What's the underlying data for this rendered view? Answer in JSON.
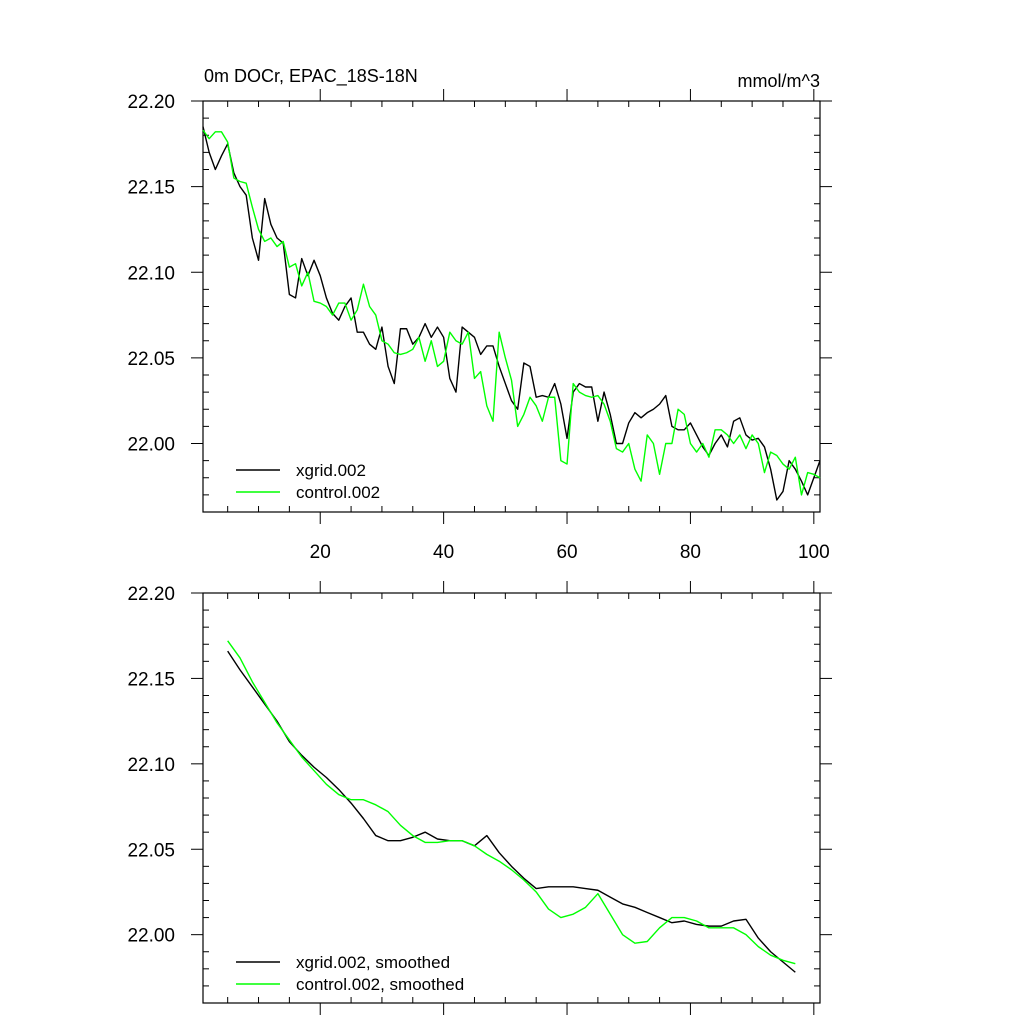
{
  "title_left": "0m DOCr, EPAC_18S-18N",
  "title_right": "mmol/m^3",
  "chart_data": [
    {
      "type": "line",
      "title": "0m DOCr, EPAC_18S-18N",
      "units": "mmol/m^3",
      "xlim": [
        1,
        101
      ],
      "ylim": [
        21.96,
        22.2
      ],
      "x_ticks": [
        20,
        40,
        60,
        80,
        100
      ],
      "x_tick_labels": [
        "20",
        "40",
        "60",
        "80",
        "100"
      ],
      "y_ticks": [
        22.0,
        22.05,
        22.1,
        22.15,
        22.2
      ],
      "y_tick_labels": [
        "22.00",
        "22.05",
        "22.10",
        "22.15",
        "22.20"
      ],
      "legend": [
        "xgrid.002",
        "control.002"
      ],
      "legend_position": "bottom-left",
      "x": [
        1,
        2,
        3,
        4,
        5,
        6,
        7,
        8,
        9,
        10,
        11,
        12,
        13,
        14,
        15,
        16,
        17,
        18,
        19,
        20,
        21,
        22,
        23,
        24,
        25,
        26,
        27,
        28,
        29,
        30,
        31,
        32,
        33,
        34,
        35,
        36,
        37,
        38,
        39,
        40,
        41,
        42,
        43,
        44,
        45,
        46,
        47,
        48,
        49,
        50,
        51,
        52,
        53,
        54,
        55,
        56,
        57,
        58,
        59,
        60,
        61,
        62,
        63,
        64,
        65,
        66,
        67,
        68,
        69,
        70,
        71,
        72,
        73,
        74,
        75,
        76,
        77,
        78,
        79,
        80,
        81,
        82,
        83,
        84,
        85,
        86,
        87,
        88,
        89,
        90,
        91,
        92,
        93,
        94,
        95,
        96,
        97,
        98,
        99,
        100,
        101
      ],
      "series": [
        {
          "name": "xgrid.002",
          "color": "#000000",
          "values": [
            22.185,
            22.17,
            22.16,
            22.168,
            22.175,
            22.158,
            22.15,
            22.145,
            22.12,
            22.107,
            22.143,
            22.128,
            22.12,
            22.117,
            22.087,
            22.085,
            22.108,
            22.098,
            22.107,
            22.098,
            22.085,
            22.076,
            22.072,
            22.08,
            22.085,
            22.065,
            22.065,
            22.058,
            22.055,
            22.068,
            22.045,
            22.035,
            22.067,
            22.067,
            22.058,
            22.062,
            22.07,
            22.062,
            22.068,
            22.062,
            22.038,
            22.03,
            22.068,
            22.065,
            22.062,
            22.052,
            22.057,
            22.057,
            22.045,
            22.035,
            22.025,
            22.02,
            22.047,
            22.045,
            22.027,
            22.028,
            22.027,
            22.035,
            22.023,
            22.003,
            22.03,
            22.035,
            22.033,
            22.033,
            22.013,
            22.03,
            22.017,
            22.0,
            22.0,
            22.012,
            22.018,
            22.015,
            22.018,
            22.02,
            22.023,
            22.028,
            22.01,
            22.008,
            22.008,
            22.012,
            22.005,
            21.998,
            21.993,
            22.0,
            22.005,
            21.998,
            22.013,
            22.015,
            22.005,
            22.002,
            22.003,
            21.998,
            21.985,
            21.967,
            21.972,
            21.99,
            21.985,
            21.978,
            21.97,
            21.98,
            21.99
          ]
        },
        {
          "name": "control.002",
          "color": "#00ff00",
          "values": [
            22.183,
            22.178,
            22.182,
            22.182,
            22.176,
            22.155,
            22.153,
            22.152,
            22.138,
            22.125,
            22.118,
            22.12,
            22.115,
            22.118,
            22.103,
            22.105,
            22.092,
            22.1,
            22.083,
            22.082,
            22.08,
            22.075,
            22.082,
            22.082,
            22.072,
            22.078,
            22.093,
            22.08,
            22.075,
            22.06,
            22.058,
            22.053,
            22.052,
            22.053,
            22.055,
            22.062,
            22.048,
            22.06,
            22.045,
            22.048,
            22.065,
            22.06,
            22.058,
            22.065,
            22.038,
            22.042,
            22.022,
            22.013,
            22.065,
            22.05,
            22.037,
            22.01,
            22.017,
            22.027,
            22.022,
            22.013,
            22.027,
            22.027,
            21.99,
            21.988,
            22.035,
            22.03,
            22.028,
            22.027,
            22.028,
            22.023,
            22.013,
            21.997,
            21.995,
            22.0,
            21.985,
            21.978,
            22.005,
            22.0,
            21.982,
            22.0,
            22.0,
            22.02,
            22.017,
            22.0,
            21.995,
            22.0,
            21.992,
            22.008,
            22.008,
            22.005,
            22.0,
            22.005,
            21.997,
            22.005,
            22.0,
            21.983,
            21.995,
            21.993,
            21.988,
            21.985,
            21.992,
            21.97,
            21.983,
            21.982,
            21.98
          ]
        }
      ]
    },
    {
      "type": "line",
      "xlim": [
        1,
        101
      ],
      "ylim": [
        21.96,
        22.2
      ],
      "x_ticks": [
        20,
        40,
        60,
        80,
        100
      ],
      "y_ticks": [
        22.0,
        22.05,
        22.1,
        22.15,
        22.2
      ],
      "y_tick_labels": [
        "22.00",
        "22.05",
        "22.10",
        "22.15",
        "22.20"
      ],
      "legend": [
        "xgrid.002, smoothed",
        "control.002, smoothed"
      ],
      "legend_position": "bottom-left",
      "x": [
        5,
        7,
        9,
        11,
        13,
        15,
        17,
        19,
        21,
        23,
        25,
        27,
        29,
        31,
        33,
        35,
        37,
        39,
        41,
        43,
        45,
        47,
        49,
        51,
        53,
        55,
        57,
        59,
        61,
        63,
        65,
        67,
        69,
        71,
        73,
        75,
        77,
        79,
        81,
        83,
        85,
        87,
        89,
        91,
        93,
        95,
        97
      ],
      "series": [
        {
          "name": "xgrid.002, smoothed",
          "color": "#000000",
          "values": [
            22.166,
            22.155,
            22.145,
            22.135,
            22.125,
            22.113,
            22.105,
            22.098,
            22.092,
            22.085,
            22.077,
            22.068,
            22.058,
            22.055,
            22.055,
            22.057,
            22.06,
            22.056,
            22.055,
            22.055,
            22.052,
            22.058,
            22.048,
            22.04,
            22.033,
            22.027,
            22.028,
            22.028,
            22.028,
            22.027,
            22.026,
            22.022,
            22.018,
            22.016,
            22.013,
            22.01,
            22.007,
            22.008,
            22.006,
            22.005,
            22.005,
            22.008,
            22.009,
            21.998,
            21.99,
            21.984,
            21.978
          ]
        },
        {
          "name": "control.002, smoothed",
          "color": "#00ff00",
          "values": [
            22.172,
            22.162,
            22.148,
            22.136,
            22.124,
            22.114,
            22.104,
            22.096,
            22.088,
            22.082,
            22.079,
            22.079,
            22.076,
            22.072,
            22.064,
            22.058,
            22.054,
            22.054,
            22.055,
            22.055,
            22.052,
            22.047,
            22.043,
            22.038,
            22.032,
            22.025,
            22.015,
            22.01,
            22.012,
            22.016,
            22.024,
            22.012,
            22.0,
            21.995,
            21.996,
            22.004,
            22.01,
            22.01,
            22.008,
            22.004,
            22.004,
            22.004,
            22.0,
            21.993,
            21.988,
            21.985,
            21.983
          ]
        }
      ]
    }
  ]
}
